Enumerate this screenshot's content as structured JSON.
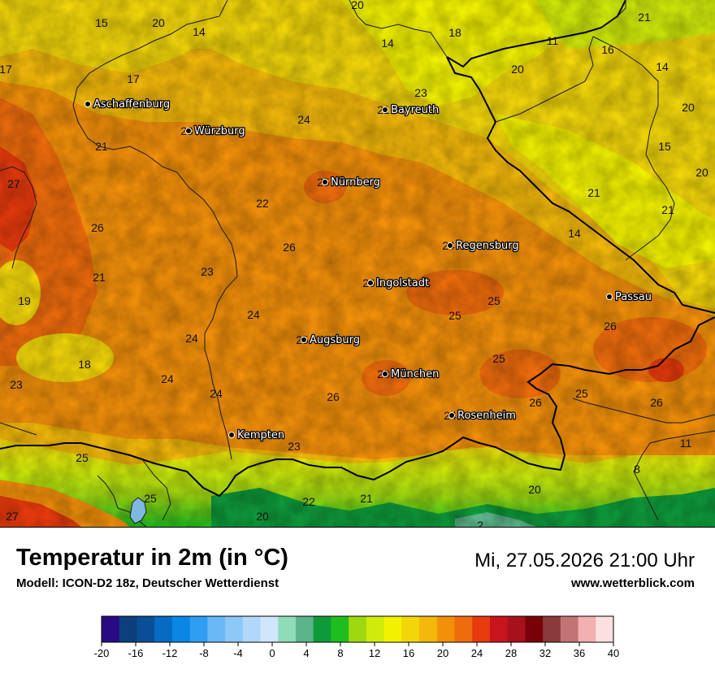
{
  "title": "Temperatur in 2m (in °C)",
  "model": "Modell: ICON-D2 18z, Deutscher Wetterdienst",
  "datetime": "Mi, 27.05.2026 21:00 Uhr",
  "website": "www.wetterblick.com",
  "cities": [
    {
      "name": "Aschaffenburg",
      "value": ""
    },
    {
      "name": "Würzburg",
      "value": "23"
    },
    {
      "name": "Bayreuth",
      "value": "21"
    },
    {
      "name": "Nürnberg",
      "value": "25"
    },
    {
      "name": "Regensburg",
      "value": "24"
    },
    {
      "name": "Ingolstadt",
      "value": "26"
    },
    {
      "name": "Passau",
      "value": ""
    },
    {
      "name": "Augsburg",
      "value": "25"
    },
    {
      "name": "München",
      "value": "28"
    },
    {
      "name": "Rosenheim",
      "value": "24"
    },
    {
      "name": "Kempten",
      "value": ""
    }
  ],
  "temperature_labels": [
    "15",
    "20",
    "14",
    "20",
    "14",
    "18",
    "11",
    "21",
    "17",
    "17",
    "20",
    "16",
    "14",
    "20",
    "23",
    "24",
    "21",
    "15",
    "27",
    "22",
    "20",
    "21",
    "26",
    "21",
    "14",
    "23",
    "26",
    "21",
    "19",
    "24",
    "25",
    "25",
    "24",
    "26",
    "18",
    "25",
    "23",
    "24",
    "24",
    "26",
    "26",
    "25",
    "26",
    "23",
    "11",
    "25",
    "8",
    "22",
    "21",
    "20",
    "25",
    "20",
    "27",
    "2"
  ],
  "legend": {
    "ticks": [
      "-20",
      "-16",
      "-12",
      "-8",
      "-4",
      "0",
      "4",
      "8",
      "12",
      "16",
      "20",
      "24",
      "28",
      "32",
      "36",
      "40"
    ],
    "colors": [
      "#2a0a82",
      "#0c3f7c",
      "#0a4f96",
      "#066bc2",
      "#0a86e4",
      "#2d9ef2",
      "#6ab8f6",
      "#8cc8f8",
      "#b1d8fa",
      "#d0e6fc",
      "#8fdcb8",
      "#5cb48a",
      "#0e9a3a",
      "#1fbe1e",
      "#9ed810",
      "#d0ea0a",
      "#f2f200",
      "#f2d60a",
      "#f2b80a",
      "#f2900a",
      "#ee6c0c",
      "#e83a0c",
      "#c8141c",
      "#a8101c",
      "#7a0008",
      "#8a3a3a",
      "#c27474",
      "#f2b0b0",
      "#fce0e0"
    ]
  }
}
